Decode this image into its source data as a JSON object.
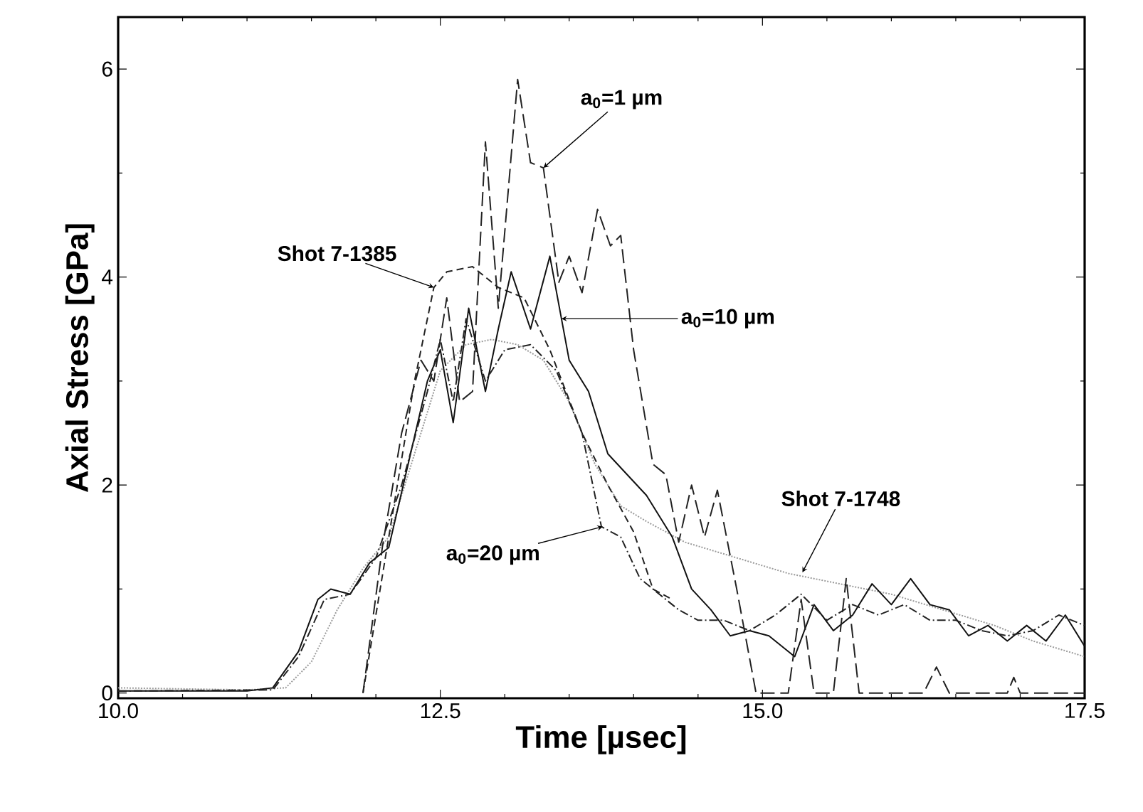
{
  "chart_data": {
    "type": "line",
    "xlabel": "Time [µsec]",
    "ylabel": "Axial Stress [GPa]",
    "xlim": [
      10.0,
      17.5
    ],
    "ylim": [
      -0.05,
      6.5
    ],
    "xticks": [
      {
        "value": 10.0,
        "label": "10.0"
      },
      {
        "value": 12.5,
        "label": "12.5"
      },
      {
        "value": 15.0,
        "label": "15.0"
      },
      {
        "value": 17.5,
        "label": "17.5"
      }
    ],
    "yticks": [
      0,
      2,
      4,
      6
    ],
    "grid": false,
    "series": [
      {
        "color": "#9a9a9a",
        "line_style": "dotted",
        "x": [
          10.0,
          11.0,
          11.3,
          11.5,
          11.7,
          11.9,
          12.1,
          12.3,
          12.5,
          12.7,
          12.9,
          13.1,
          13.3,
          13.5,
          13.7,
          13.9,
          14.1,
          14.4,
          14.8,
          15.2,
          15.6,
          16.0,
          16.4,
          16.8,
          17.1,
          17.5
        ],
        "values": [
          0.05,
          0.03,
          0.05,
          0.3,
          0.8,
          1.2,
          1.5,
          2.3,
          3.1,
          3.35,
          3.4,
          3.35,
          3.2,
          2.8,
          2.2,
          1.8,
          1.65,
          1.45,
          1.3,
          1.15,
          1.05,
          0.95,
          0.8,
          0.65,
          0.5,
          0.35
        ]
      },
      {
        "color": "#222222",
        "line_style": "dashed",
        "x": [
          11.9,
          12.1,
          12.3,
          12.45,
          12.55,
          12.75,
          12.95,
          13.15,
          13.35,
          13.6,
          13.8,
          14.0,
          14.15,
          14.3
        ],
        "values": [
          0.0,
          1.5,
          3.0,
          3.9,
          4.05,
          4.1,
          3.9,
          3.8,
          3.3,
          2.5,
          2.0,
          1.55,
          1.0,
          0.9
        ]
      },
      {
        "color": "#111111",
        "line_style": "solid",
        "x": [
          10.0,
          11.0,
          11.2,
          11.4,
          11.55,
          11.65,
          11.8,
          11.95,
          12.1,
          12.25,
          12.4,
          12.5,
          12.6,
          12.72,
          12.85,
          12.95,
          13.05,
          13.2,
          13.35,
          13.5,
          13.65,
          13.8,
          13.95,
          14.1,
          14.3,
          14.45,
          14.6,
          14.75,
          14.9,
          15.05,
          15.25,
          15.4,
          15.55,
          15.7,
          15.85,
          16.0,
          16.15,
          16.3,
          16.45,
          16.6,
          16.75,
          16.9,
          17.05,
          17.2,
          17.35,
          17.5
        ],
        "values": [
          0.02,
          0.02,
          0.05,
          0.4,
          0.9,
          1.0,
          0.95,
          1.25,
          1.4,
          2.2,
          3.0,
          3.3,
          2.6,
          3.7,
          2.9,
          3.5,
          4.05,
          3.5,
          4.2,
          3.2,
          2.9,
          2.3,
          2.1,
          1.9,
          1.5,
          1.0,
          0.8,
          0.55,
          0.6,
          0.55,
          0.35,
          0.85,
          0.6,
          0.75,
          1.05,
          0.85,
          1.1,
          0.85,
          0.8,
          0.55,
          0.65,
          0.5,
          0.65,
          0.5,
          0.75,
          0.45
        ]
      },
      {
        "color": "#222222",
        "line_style": "dashdot",
        "x": [
          10.0,
          11.2,
          11.4,
          11.6,
          11.8,
          12.0,
          12.2,
          12.4,
          12.5,
          12.6,
          12.7,
          12.85,
          13.0,
          13.2,
          13.4,
          13.6,
          13.75,
          13.9,
          14.05,
          14.2,
          14.35,
          14.5,
          14.7,
          14.9,
          15.1,
          15.3,
          15.5,
          15.7,
          15.9,
          16.1,
          16.3,
          16.5,
          16.7,
          16.9,
          17.1,
          17.3,
          17.5
        ],
        "values": [
          0.02,
          0.03,
          0.35,
          0.9,
          0.95,
          1.3,
          2.0,
          2.9,
          3.4,
          2.8,
          3.6,
          3.0,
          3.3,
          3.35,
          3.1,
          2.5,
          1.6,
          1.5,
          1.1,
          0.95,
          0.8,
          0.7,
          0.7,
          0.6,
          0.75,
          0.95,
          0.7,
          0.85,
          0.75,
          0.85,
          0.7,
          0.7,
          0.6,
          0.55,
          0.6,
          0.75,
          0.65
        ]
      },
      {
        "color": "#222222",
        "line_style": "longdashed",
        "x": [
          11.9,
          12.05,
          12.2,
          12.35,
          12.45,
          12.55,
          12.65,
          12.75,
          12.85,
          12.95,
          13.1,
          13.2,
          13.3,
          13.42,
          13.5,
          13.6,
          13.72,
          13.82,
          13.9,
          14.0,
          14.15,
          14.25,
          14.35,
          14.45,
          14.55,
          14.65,
          14.8,
          14.95,
          15.2,
          15.3,
          15.4,
          15.55,
          15.65,
          15.75,
          16.25,
          16.35,
          16.45,
          16.9,
          16.95,
          17.0,
          17.5
        ],
        "values": [
          0.0,
          1.4,
          2.5,
          3.2,
          3.0,
          3.8,
          2.8,
          2.9,
          5.3,
          3.7,
          5.9,
          5.1,
          5.05,
          3.95,
          4.2,
          3.85,
          4.65,
          4.3,
          4.4,
          3.3,
          2.2,
          2.1,
          1.45,
          2.0,
          1.5,
          1.95,
          1.0,
          0.0,
          0.0,
          0.9,
          0.0,
          0.0,
          1.1,
          0.0,
          0.0,
          0.25,
          0.0,
          0.0,
          0.15,
          0.0,
          0.0
        ]
      }
    ],
    "annotations": [
      {
        "text": "a$_{0}$=1 µm",
        "x": 13.3,
        "y": 5.05
      },
      {
        "text": "Shot 7-1385",
        "x": 12.45,
        "y": 3.9
      },
      {
        "text": "a$_{0}$=10 µm",
        "x": 13.44,
        "y": 3.6
      },
      {
        "text": "a$_{0}$=20 µm",
        "x": 13.76,
        "y": 1.6
      },
      {
        "text": "Shot 7-1748",
        "x": 15.31,
        "y": 1.16
      }
    ]
  }
}
